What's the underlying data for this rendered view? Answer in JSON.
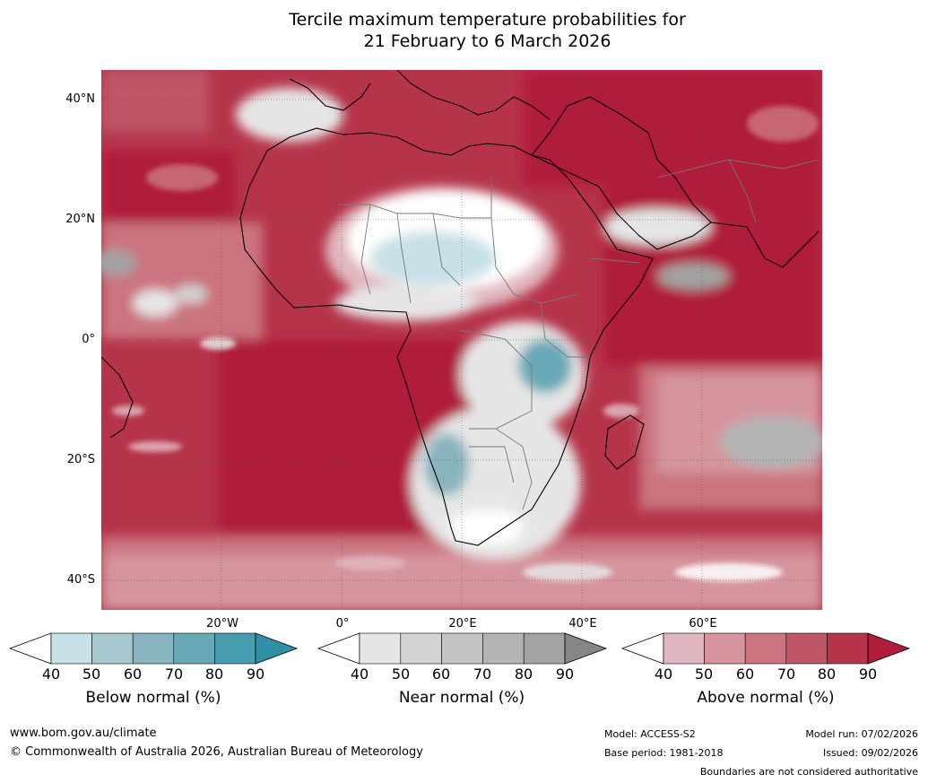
{
  "title": {
    "line1": "Tercile maximum temperature probabilities for",
    "line2": "21 February to 6 March 2026"
  },
  "lat_labels": [
    "40°N",
    "20°N",
    "0°",
    "20°S",
    "40°S"
  ],
  "lon_labels": [
    "20°W",
    "0°",
    "20°E",
    "40°E",
    "60°E"
  ],
  "colorbars": [
    {
      "name": "below",
      "label": "Below normal (%)",
      "ticks": [
        "40",
        "50",
        "60",
        "70",
        "80",
        "90"
      ],
      "colors": [
        "#ffffff",
        "#c8e0e7",
        "#a7c8cf",
        "#87b4bf",
        "#69a9b7",
        "#479cb0",
        "#2f8fa5"
      ]
    },
    {
      "name": "near",
      "label": "Near normal (%)",
      "ticks": [
        "40",
        "50",
        "60",
        "70",
        "80",
        "90"
      ],
      "colors": [
        "#ffffff",
        "#e6e6e6",
        "#d4d4d4",
        "#c4c4c4",
        "#b4b4b4",
        "#a3a3a3",
        "#868686"
      ]
    },
    {
      "name": "above",
      "label": "Above normal (%)",
      "ticks": [
        "40",
        "50",
        "60",
        "70",
        "80",
        "90"
      ],
      "colors": [
        "#ffffff",
        "#e1b7bf",
        "#d6949e",
        "#cb737f",
        "#bf5566",
        "#b6344a",
        "#b01c3a"
      ]
    }
  ],
  "footer": {
    "website": "www.bom.gov.au/climate",
    "copyright": "© Commonwealth of Australia 2026, Australian Bureau of Meteorology",
    "model": "Model: ACCESS-S2",
    "base_period": "Base period: 1981-2018",
    "model_run": "Model run: 07/02/2026",
    "issued": "Issued: 09/02/2026",
    "disclaimer": "Boundaries are not considered authoritative"
  }
}
